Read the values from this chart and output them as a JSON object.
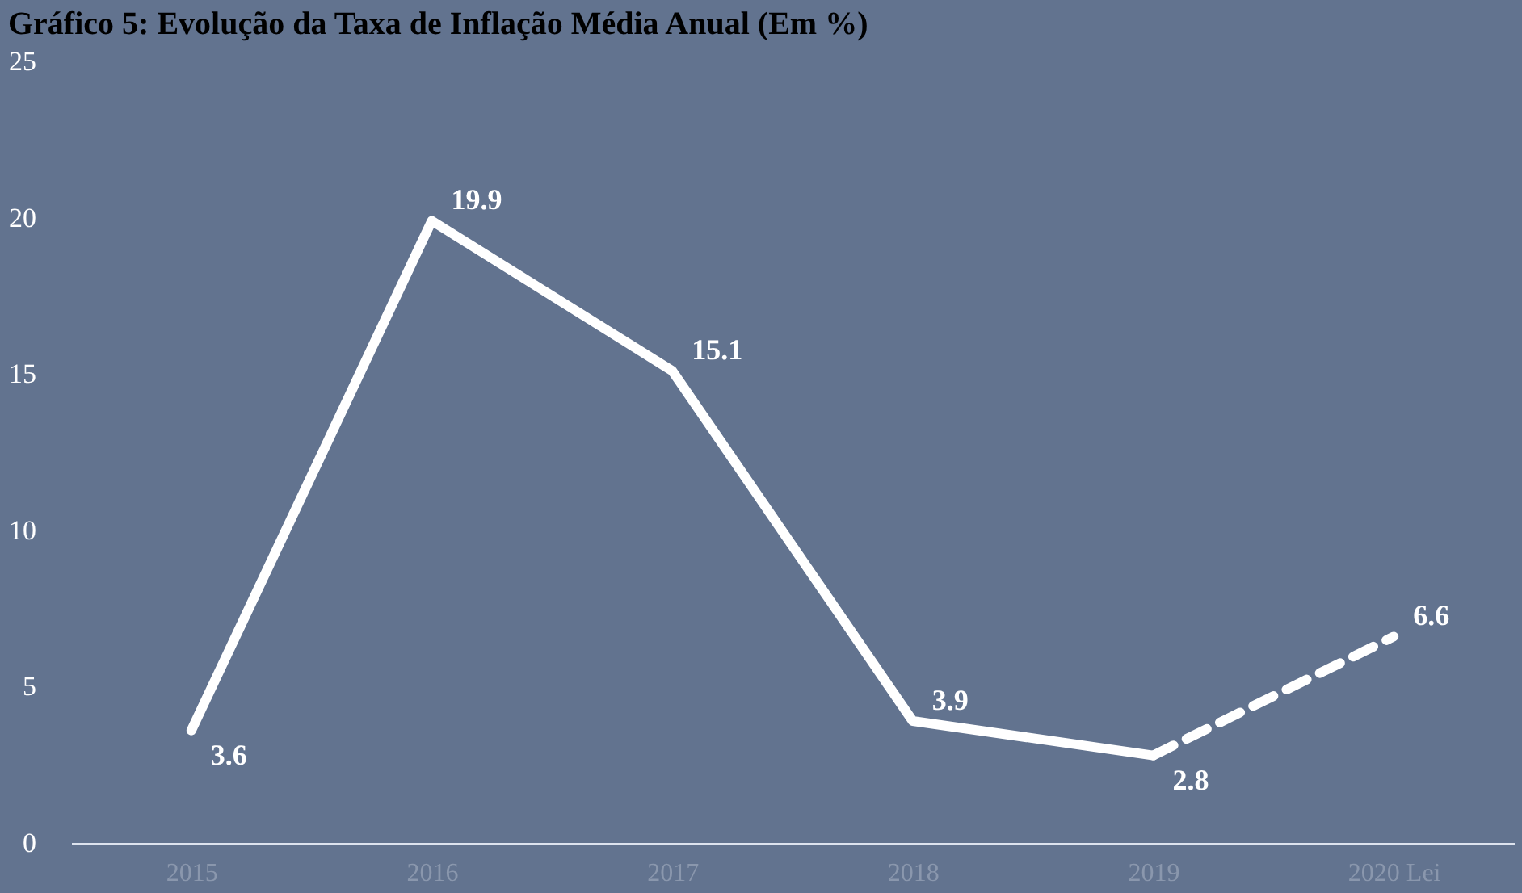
{
  "chart_data": {
    "type": "line",
    "title": "Gráfico 5: Evolução da Taxa de Inflação Média Anual (Em %)",
    "categories": [
      "2015",
      "2016",
      "2017",
      "2018",
      "2019",
      "2020 Lei"
    ],
    "series": [
      {
        "color": "#ffffff",
        "line_style": "solid",
        "values": [
          3.6,
          19.9,
          15.1,
          3.9,
          2.8,
          null
        ],
        "value_labels": [
          "3.6",
          "19.9",
          "15.1",
          "3.9",
          "2.8",
          null
        ]
      },
      {
        "color": "#ffffff",
        "line_style": "dashed",
        "values": [
          null,
          null,
          null,
          null,
          2.8,
          6.6
        ],
        "value_labels": [
          null,
          null,
          null,
          null,
          null,
          "6.6"
        ]
      }
    ],
    "ylim": [
      0,
      25
    ],
    "yticks": [
      0,
      5,
      10,
      15,
      20,
      25
    ],
    "grid": false,
    "marker": "none"
  }
}
